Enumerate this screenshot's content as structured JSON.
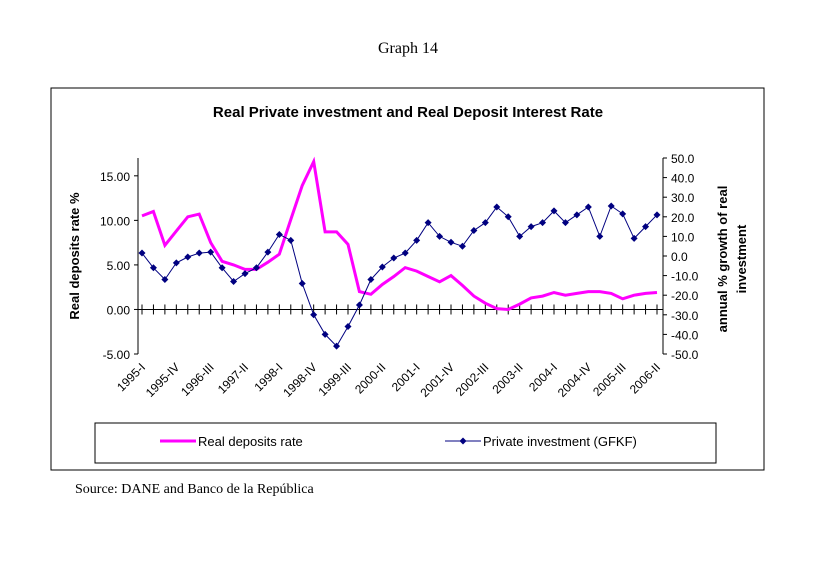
{
  "header": "Graph 14",
  "chart_data": {
    "type": "line",
    "title": "Real Private investment and Real Deposit Interest Rate",
    "y_label": "Real deposits rate %",
    "y2_label": "annual % growth of real investment",
    "categories": [
      "1995-I",
      null,
      null,
      "1995-IV",
      null,
      null,
      "1996-III",
      null,
      null,
      "1997-II",
      null,
      null,
      "1998-I",
      null,
      null,
      "1998-IV",
      null,
      null,
      "1999-III",
      null,
      null,
      "2000-II",
      null,
      null,
      "2001-I",
      null,
      null,
      "2001-IV",
      null,
      null,
      "2002-III",
      null,
      null,
      "2003-II",
      null,
      null,
      "2004-I",
      null,
      null,
      "2004-IV",
      null,
      null,
      "2005-III",
      null,
      null,
      "2006-II"
    ],
    "ylim": [
      -5,
      17
    ],
    "yticks": [
      {
        "value": -5,
        "label": "-5.00"
      },
      {
        "value": 0,
        "label": "0.00"
      },
      {
        "value": 5,
        "label": "5.00"
      },
      {
        "value": 10,
        "label": "10.00"
      },
      {
        "value": 15,
        "label": "15.00"
      }
    ],
    "y2lim": [
      -50,
      50
    ],
    "y2ticks": [
      {
        "value": -50,
        "label": "-50.0"
      },
      {
        "value": -40,
        "label": "-40.0"
      },
      {
        "value": -30,
        "label": "-30.0"
      },
      {
        "value": -20,
        "label": "-20.0"
      },
      {
        "value": -10,
        "label": "-10.0"
      },
      {
        "value": 0,
        "label": "0.0"
      },
      {
        "value": 10,
        "label": "10.0"
      },
      {
        "value": 20,
        "label": "20.0"
      },
      {
        "value": 30,
        "label": "30.0"
      },
      {
        "value": 40,
        "label": "40.0"
      },
      {
        "value": 50,
        "label": "50.0"
      }
    ],
    "series": [
      {
        "name": "Real deposits rate",
        "color": "#ff00ff",
        "marker": "none",
        "values": [
          10.5,
          11.0,
          7.2,
          8.8,
          10.4,
          10.7,
          7.5,
          5.4,
          5.0,
          4.5,
          4.5,
          5.3,
          6.2,
          10.1,
          13.9,
          16.6,
          8.7,
          8.7,
          7.3,
          2.0,
          1.7,
          2.8,
          3.7,
          4.7,
          4.3,
          3.7,
          3.1,
          3.8,
          2.7,
          1.5,
          0.7,
          0.1,
          0.0,
          0.6,
          1.3,
          1.5,
          1.9,
          1.6,
          1.8,
          2.0,
          2.0,
          1.8,
          1.2,
          1.6,
          1.8,
          1.9
        ]
      },
      {
        "name": "Private investment (GFKF)",
        "color": "#000080",
        "marker": "diamond",
        "axis": "y2",
        "values": [
          1.5,
          -6,
          -12,
          -3.5,
          -0.5,
          1.5,
          2,
          -6,
          -13,
          -9,
          -6,
          2,
          11,
          8,
          -14,
          -30,
          -40,
          -46,
          -36,
          -25,
          -12,
          -5.6,
          -1,
          1.5,
          8,
          17,
          10,
          7,
          5,
          13,
          17,
          25,
          20,
          10,
          15,
          17,
          23,
          17,
          21,
          25,
          10,
          25.5,
          21.5,
          9,
          15,
          21
        ]
      }
    ]
  },
  "source": "Source: DANE and Banco de la República"
}
